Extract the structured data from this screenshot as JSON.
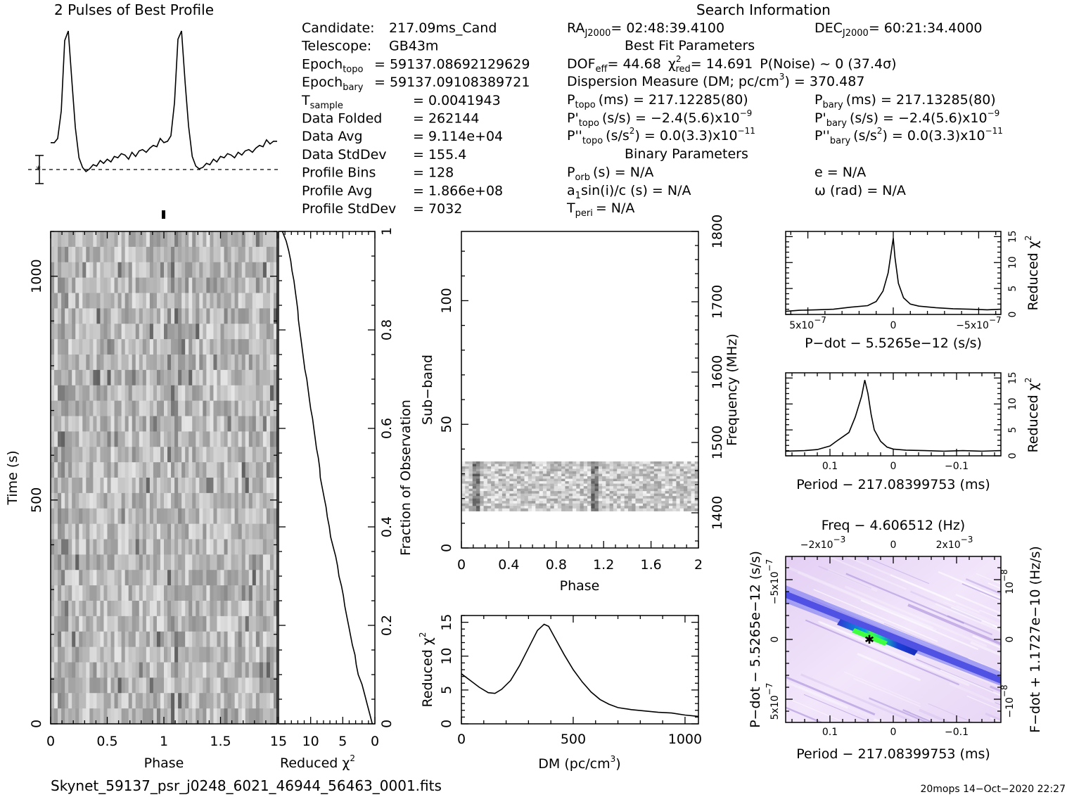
{
  "title_profile": "2 Pulses of Best Profile",
  "title_search": "Search Information",
  "filename": "Skynet_59137_psr_j0248_6021_46944_56463_0001.fits",
  "footer_stamp": "20mops  14−Oct−2020 22:27",
  "info_left": [
    {
      "label": "Candidate:",
      "value": "217.09ms_Cand"
    },
    {
      "label": "Telescope:",
      "value": "GB43m"
    },
    {
      "label": "Epoch",
      "sub": "topo",
      "value": "= 59137.08692129629"
    },
    {
      "label": "Epoch",
      "sub": "bary",
      "value": "= 59137.09108389721"
    },
    {
      "label": "T",
      "sub": "sample",
      "value": "=   0.0041943"
    },
    {
      "label": "Data Folded",
      "value": "=   262144"
    },
    {
      "label": "Data Avg",
      "value": "=   9.114e+04"
    },
    {
      "label": "Data StdDev",
      "value": "=   155.4"
    },
    {
      "label": "Profile Bins",
      "value": "=   128"
    },
    {
      "label": "Profile Avg",
      "value": "=   1.866e+08"
    },
    {
      "label": "Profile StdDev",
      "value": "=   7032"
    }
  ],
  "info_ra": {
    "label": "RA",
    "sub": "J2000",
    "value": "= 02:48:39.4100"
  },
  "info_dec": {
    "label": "DEC",
    "sub": "J2000",
    "value": "= 60:21:34.4000"
  },
  "best_fit_title": "Best Fit Parameters",
  "dof_line": {
    "dof_label": "DOF",
    "dof_sub": "eff",
    "dof_value": "= 44.68",
    "chi_label": "χ",
    "chi_sup": "2",
    "chi_sub": "red",
    "chi_value": "= 14.691",
    "noise": "P(Noise) ~ 0    (37.4σ)"
  },
  "dm_line": "Dispersion Measure (DM; pc/cm",
  "dm_line_sup": "3",
  "dm_line_end": ") = 370.487",
  "p_topo": {
    "label": "P",
    "sub": "topo",
    "value": "(ms)  =  217.12285(80)"
  },
  "p_bary": {
    "label": "P",
    "sub": "bary",
    "value": "(ms)  =  217.13285(80)"
  },
  "pd_topo": {
    "label": "P'",
    "sub": "topo",
    "value": "(s/s) = −2.4(5.6)x10",
    "exp": "−9"
  },
  "pd_bary": {
    "label": "P'",
    "sub": "bary",
    "value": "(s/s) = −2.4(5.6)x10",
    "exp": "−9"
  },
  "pdd_topo": {
    "label": "P''",
    "sub": "topo",
    "value": "(s/s",
    "sup": "2",
    "value2": ") = 0.0(3.3)x10",
    "exp": "−11"
  },
  "pdd_bary": {
    "label": "P''",
    "sub": "bary",
    "value": "(s/s",
    "sup": "2",
    "value2": ") = 0.0(3.3)x10",
    "exp": "−11"
  },
  "binary_title": "Binary Parameters",
  "porb": {
    "label": "P",
    "sub": "orb",
    "value": "(s) = N/A"
  },
  "ecc": "e = N/A",
  "asini": {
    "label": "a",
    "sub": "1",
    "value": "sin(i)/c (s) = N/A"
  },
  "omega": "ω (rad) = N/A",
  "tperi": {
    "label": "T",
    "sub": "peri",
    "value": "= N/A"
  },
  "chart_data": [
    {
      "type": "line",
      "id": "profile",
      "title": "2 Pulses of Best Profile",
      "x": [
        0,
        0.016,
        0.031,
        0.047,
        0.062,
        0.078,
        0.094,
        0.109,
        0.125,
        0.141,
        0.156,
        0.172,
        0.188,
        0.203,
        0.219,
        0.234,
        0.25,
        0.266,
        0.281,
        0.297,
        0.312,
        0.328,
        0.344,
        0.359,
        0.375,
        0.391,
        0.406,
        0.422,
        0.438,
        0.453,
        0.469,
        0.484,
        0.5,
        0.516,
        0.531,
        0.547,
        0.562,
        0.578,
        0.594,
        0.609,
        0.625,
        0.641,
        0.656,
        0.672,
        0.688,
        0.703,
        0.719,
        0.734,
        0.75,
        0.766,
        0.781,
        0.797,
        0.812,
        0.828,
        0.844,
        0.859,
        0.875,
        0.891,
        0.906,
        0.922,
        0.938,
        0.953,
        0.969,
        0.984,
        1.0
      ],
      "y": [
        0.19,
        0.19,
        0.22,
        0.42,
        0.93,
        1.0,
        0.63,
        0.3,
        0.08,
        0.01,
        -0.02,
        0.0,
        0.03,
        0.02,
        0.06,
        0.04,
        0.07,
        0.05,
        0.09,
        0.08,
        0.11,
        0.1,
        0.07,
        0.12,
        0.09,
        0.13,
        0.14,
        0.12,
        0.15,
        0.17,
        0.16,
        0.22,
        0.19,
        0.2,
        0.24,
        0.48,
        0.94,
        1.0,
        0.62,
        0.31,
        0.09,
        0.02,
        0.0,
        0.01,
        0.04,
        0.03,
        0.07,
        0.05,
        0.09,
        0.08,
        0.11,
        0.1,
        0.08,
        0.12,
        0.1,
        0.13,
        0.14,
        0.12,
        0.15,
        0.17,
        0.16,
        0.21,
        0.18,
        0.2,
        0.2
      ],
      "error_bar": "±1σ"
    },
    {
      "type": "heatmap",
      "id": "time-phase",
      "xlabel": "Phase",
      "ylabel": "Time (s)",
      "xlim": [
        0,
        2
      ],
      "ylim": [
        0,
        1100
      ],
      "x_ticks": [
        "0",
        "0.5",
        "1",
        "1.5"
      ],
      "y_ticks": [
        "0",
        "500",
        "1000"
      ],
      "pulse_phases": [
        0.1,
        1.1
      ]
    },
    {
      "type": "line",
      "id": "reduced-chi2-vs-time",
      "xlabel": "Reduced χ",
      "xlabel_sup": "2",
      "ylabel": "Fraction of Observation",
      "x_ticks": [
        "15",
        "10",
        "5",
        "0"
      ],
      "y_ticks": [
        "0",
        "0.2",
        "0.4",
        "0.6",
        "0.8",
        "1"
      ],
      "xlim": [
        15,
        0
      ],
      "ylim": [
        0,
        1
      ],
      "fraction": [
        0,
        0.02,
        0.04,
        0.06,
        0.08,
        0.1,
        0.12,
        0.14,
        0.16,
        0.18,
        0.2,
        0.22,
        0.24,
        0.26,
        0.28,
        0.3,
        0.32,
        0.34,
        0.36,
        0.38,
        0.4,
        0.42,
        0.44,
        0.46,
        0.48,
        0.5,
        0.52,
        0.54,
        0.56,
        0.58,
        0.6,
        0.62,
        0.64,
        0.66,
        0.68,
        0.7,
        0.72,
        0.74,
        0.76,
        0.78,
        0.8,
        0.82,
        0.84,
        0.86,
        0.88,
        0.9,
        0.92,
        0.94,
        0.96,
        0.98,
        1.0
      ],
      "chi2": [
        0.4,
        0.8,
        1.2,
        1.6,
        2.0,
        2.6,
        2.9,
        3.1,
        3.5,
        3.8,
        4.1,
        4.4,
        4.7,
        4.9,
        5.2,
        5.6,
        5.8,
        6.1,
        6.5,
        6.9,
        7.1,
        7.4,
        7.6,
        7.9,
        8.2,
        8.5,
        8.6,
        8.8,
        9.1,
        9.3,
        9.5,
        9.7,
        10.0,
        10.2,
        10.4,
        10.6,
        10.9,
        11.1,
        11.3,
        11.5,
        11.7,
        11.9,
        12.0,
        12.2,
        12.4,
        12.6,
        12.9,
        13.1,
        13.4,
        13.8,
        14.4
      ]
    },
    {
      "type": "heatmap",
      "id": "subband-phase",
      "xlabel": "Phase",
      "ylabel": "Sub−band",
      "ylabel_right": "Frequency (MHz)",
      "xlim": [
        0,
        2
      ],
      "ylim": [
        0,
        128
      ],
      "x_ticks": [
        "0",
        "0.4",
        "0.8",
        "1.2",
        "1.6",
        "2"
      ],
      "y_ticks": [
        "0",
        "50",
        "100"
      ],
      "y2_ticks": [
        "1400",
        "1500",
        "1600",
        "1700",
        "1800"
      ],
      "y2lim": [
        1350,
        1800
      ],
      "data_subbands": [
        15,
        35
      ],
      "pulse_phases": [
        0.1,
        1.1
      ]
    },
    {
      "type": "line",
      "id": "dm-curve",
      "xlabel": "DM (pc/cm",
      "xlabel_sup": "3",
      "xlabel_end": ")",
      "ylabel": "Reduced χ",
      "ylabel_sup": "2",
      "x_ticks": [
        "0",
        "500",
        "1000"
      ],
      "y_ticks": [
        "0",
        "5",
        "10",
        "15"
      ],
      "xlim": [
        0,
        1060
      ],
      "ylim": [
        0,
        16
      ],
      "x": [
        0,
        40,
        80,
        120,
        150,
        180,
        220,
        260,
        300,
        340,
        370,
        390,
        420,
        460,
        500,
        540,
        580,
        620,
        660,
        700,
        760,
        820,
        880,
        940,
        1000,
        1060
      ],
      "y": [
        7.4,
        6.4,
        5.4,
        4.6,
        4.5,
        5.1,
        6.4,
        8.6,
        11.2,
        13.8,
        14.7,
        14.4,
        12.6,
        10.2,
        8.0,
        6.2,
        4.7,
        3.6,
        2.9,
        2.4,
        2.1,
        1.9,
        1.7,
        1.6,
        1.3,
        1.1
      ]
    },
    {
      "type": "line",
      "id": "pdot-chi2",
      "xlabel": "P−dot − 5.5265e−12 (s/s)",
      "ylabel": "Reduced χ",
      "ylabel_sup": "2",
      "x_ticks": [
        "5x10",
        "0",
        "−5x10"
      ],
      "x_tick_exp": "−7",
      "y_ticks": [
        "0",
        "5",
        "10",
        "15"
      ],
      "xlim": [
        6.3e-07,
        -6.3e-07
      ],
      "ylim": [
        0,
        16
      ],
      "x": [
        6.3e-07,
        5.5e-07,
        4.5e-07,
        3.5e-07,
        2.5e-07,
        1.5e-07,
        1e-07,
        6e-08,
        3e-08,
        1e-08,
        0,
        -1e-08,
        -3e-08,
        -6e-08,
        -1e-07,
        -1.5e-07,
        -2.5e-07,
        -3.5e-07,
        -4.5e-07,
        -5.5e-07,
        -6.3e-07
      ],
      "y": [
        0.6,
        0.8,
        0.9,
        1.0,
        1.4,
        1.7,
        2.5,
        4.5,
        8.0,
        12.5,
        14.7,
        11.0,
        6.0,
        3.2,
        2.0,
        1.6,
        1.3,
        1.1,
        1.0,
        0.9,
        1.0
      ]
    },
    {
      "type": "line",
      "id": "period-chi2",
      "xlabel": "Period − 217.08399753 (ms)",
      "ylabel": "Reduced χ",
      "ylabel_sup": "2",
      "x_ticks": [
        "0.1",
        "0",
        "−0.1"
      ],
      "y_ticks": [
        "0",
        "5",
        "10",
        "15"
      ],
      "xlim": [
        0.17,
        -0.17
      ],
      "ylim": [
        0,
        16
      ],
      "x": [
        0.17,
        0.14,
        0.12,
        0.1,
        0.09,
        0.07,
        0.06,
        0.05,
        0.045,
        0.04,
        0.035,
        0.03,
        0.02,
        0.01,
        0,
        -0.02,
        -0.05,
        -0.08,
        -0.11,
        -0.14,
        -0.17
      ],
      "y": [
        0.9,
        1.0,
        1.2,
        1.9,
        2.8,
        4.5,
        7.5,
        11.5,
        14.6,
        12.0,
        8.0,
        5.0,
        2.8,
        1.7,
        1.3,
        1.1,
        1.0,
        0.9,
        1.0,
        0.9,
        1.0
      ]
    },
    {
      "type": "heatmap",
      "id": "period-pdot",
      "title": "Freq − 4.606512 (Hz)",
      "xlabel": "Period − 217.08399753 (ms)",
      "ylabel": "P−dot − 5.5265e−12 (s/s)",
      "ylabel_right": "F−dot + 1.1727e−10 (Hz/s)",
      "x_ticks": [
        "0.1",
        "0",
        "−0.1"
      ],
      "top_ticks": [
        "−2x10",
        "0",
        "2x10"
      ],
      "top_tick_exp": "−3",
      "left_ticks": [
        "−5x10",
        "0",
        "5x10"
      ],
      "left_tick_exp": "−7",
      "right_ticks": [
        "10",
        "0",
        "−10"
      ],
      "right_tick_exp": "−8",
      "xlim": [
        0.17,
        -0.17
      ],
      "best": [
        0.035,
        0
      ]
    }
  ]
}
